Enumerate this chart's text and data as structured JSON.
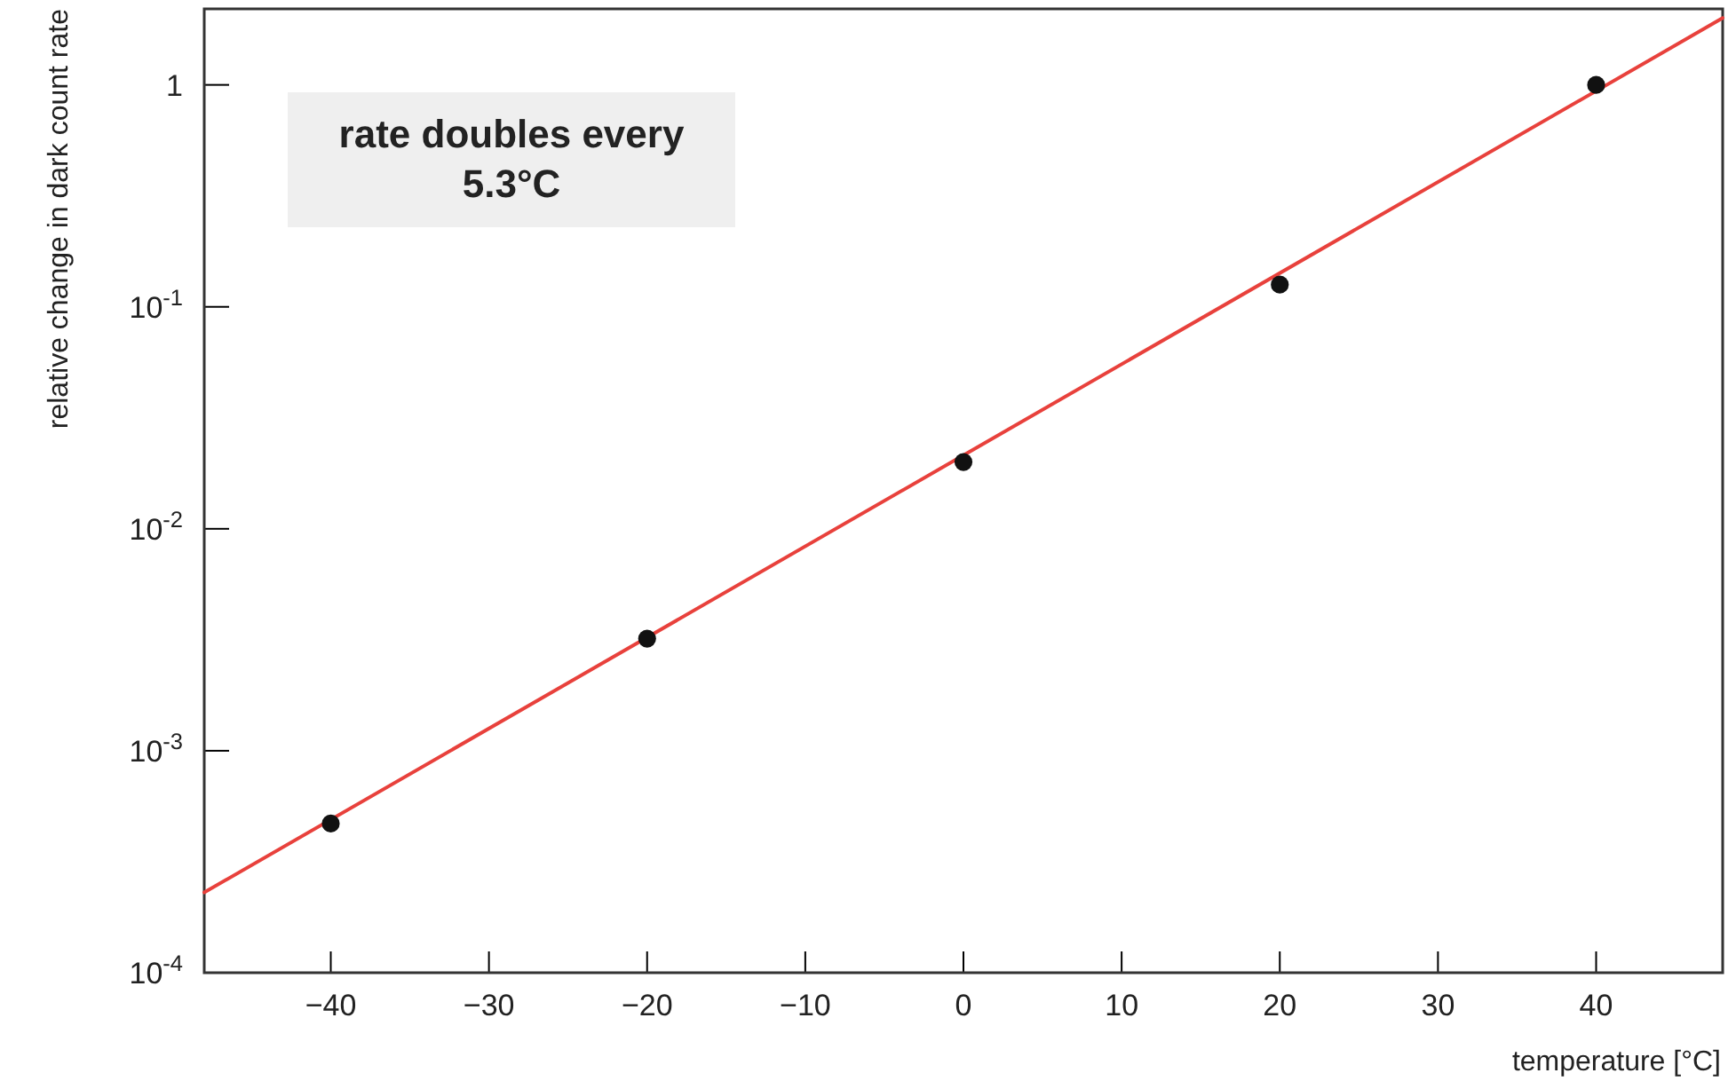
{
  "chart_data": {
    "type": "scatter",
    "xlabel": "temperature [°C]",
    "ylabel": "relative change in dark count rate",
    "log": "y",
    "marker": "circle",
    "xlim": [
      -48,
      48
    ],
    "xticks": [
      {
        "value": -40,
        "label": "−40"
      },
      {
        "value": -30,
        "label": "−30"
      },
      {
        "value": -20,
        "label": "−20"
      },
      {
        "value": -10,
        "label": "−10"
      },
      0,
      10,
      20,
      30,
      40
    ],
    "ylim": [
      0.0001,
      2.2
    ],
    "yticks": [
      {
        "value": 0.0001,
        "label": "10$^{-4}$"
      },
      {
        "value": 0.001,
        "label": "10$^{-3}$"
      },
      {
        "value": 0.01,
        "label": "10$^{-2}$"
      },
      {
        "value": 0.1,
        "label": "10$^{-1}$"
      },
      1
    ],
    "series": [
      {
        "color": "#111111",
        "x": [
          -40,
          -20,
          0,
          20,
          40
        ],
        "values": [
          0.00047,
          0.0032,
          0.02,
          0.126,
          1.0
        ]
      },
      {
        "type": "line",
        "marker": "none",
        "color": "#e8413c",
        "x": [
          -48,
          48
        ],
        "values": [
          0.00023,
          2.0
        ]
      }
    ],
    "annotations": [
      "rate doubles every 5.3°C"
    ]
  }
}
